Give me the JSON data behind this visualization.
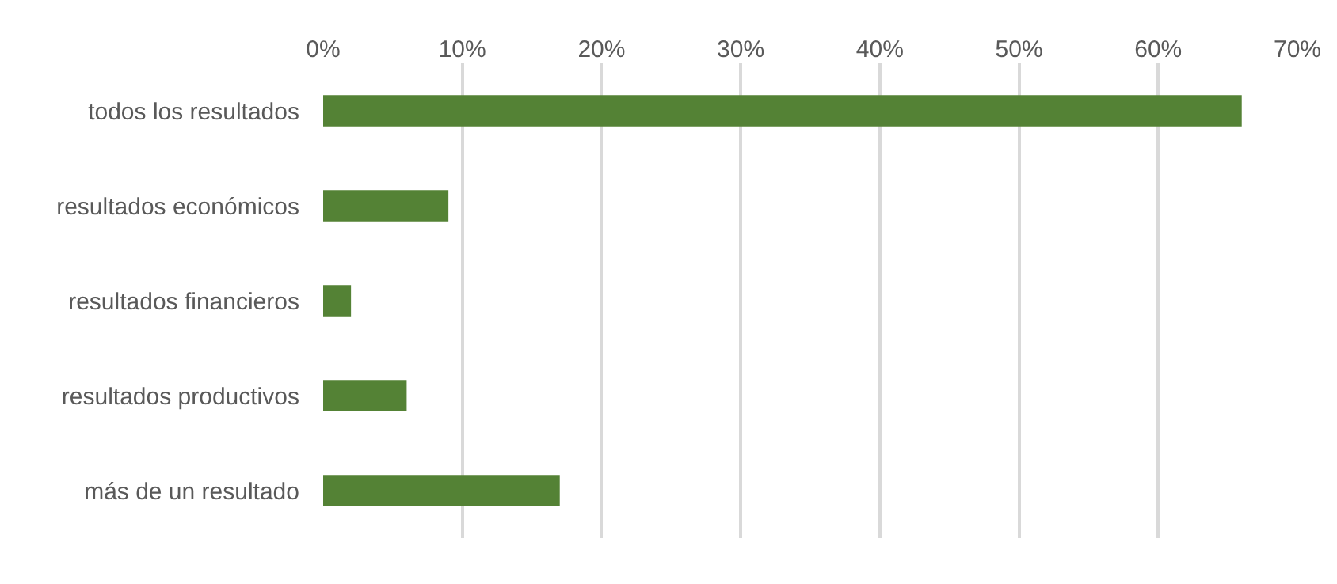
{
  "chart_data": {
    "type": "bar",
    "orientation": "horizontal",
    "categories": [
      "todos los resultados",
      "resultados económicos",
      "resultados financieros",
      "resultados productivos",
      "más de un resultado"
    ],
    "values": [
      66,
      9,
      2,
      6,
      17
    ],
    "color": "#548235",
    "xlim": [
      0,
      70
    ],
    "xticks": [
      {
        "value": 0,
        "label": "0%"
      },
      {
        "value": 10,
        "label": "10%"
      },
      {
        "value": 20,
        "label": "20%"
      },
      {
        "value": 30,
        "label": "30%"
      },
      {
        "value": 40,
        "label": "40%"
      },
      {
        "value": 50,
        "label": "50%"
      },
      {
        "value": 60,
        "label": "60%"
      },
      {
        "value": 70,
        "label": "70%"
      }
    ],
    "grid": "x",
    "legend": false
  }
}
